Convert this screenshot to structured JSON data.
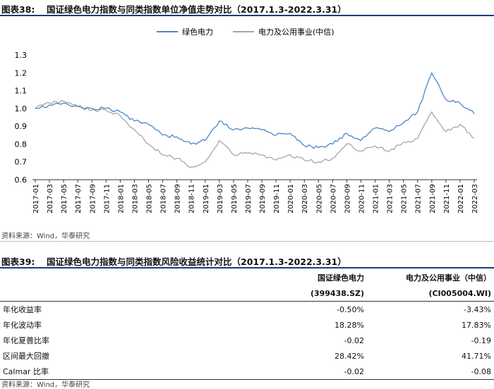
{
  "exhibit1": {
    "label": "图表38:",
    "title": "国证绿色电力指数与同类指数单位净值走势对比（2017.1.3-2022.3.31）",
    "source": "资料来源：Wind，华泰研究"
  },
  "exhibit2": {
    "label": "图表39:",
    "title": "国证绿色电力指数与同类指数风险收益统计对比（2017.1.3-2022.3.31）",
    "source": "资料来源：Wind，华泰研究",
    "col1_name": "国证绿色电力",
    "col1_code": "(399438.SZ)",
    "col2_name": "电力及公用事业（中信）",
    "col2_code": "(CI005004.WI)",
    "rows": [
      {
        "label": "年化收益率",
        "v1": "-0.50%",
        "v2": "-3.43%"
      },
      {
        "label": "年化波动率",
        "v1": "18.28%",
        "v2": "17.83%"
      },
      {
        "label": "年化夏普比率",
        "v1": "-0.02",
        "v2": "-0.19"
      },
      {
        "label": "区间最大回撤",
        "v1": "28.42%",
        "v2": "41.71%"
      },
      {
        "label": "Calmar 比率",
        "v1": "-0.02",
        "v2": "-0.08"
      }
    ]
  },
  "chart_data": {
    "type": "line",
    "title": "",
    "xlabel": "",
    "ylabel": "",
    "ylim": [
      0.6,
      1.3
    ],
    "yticks": [
      "1.3",
      "1.2",
      "1.1",
      "1.0",
      "0.9",
      "0.8",
      "0.7",
      "0.6"
    ],
    "legend_position": "top-center",
    "x": [
      "2017-01",
      "2017-03",
      "2017-05",
      "2017-07",
      "2017-09",
      "2017-11",
      "2018-01",
      "2018-03",
      "2018-05",
      "2018-07",
      "2018-09",
      "2018-11",
      "2019-01",
      "2019-03",
      "2019-05",
      "2019-07",
      "2019-09",
      "2019-11",
      "2020-01",
      "2020-03",
      "2020-05",
      "2020-07",
      "2020-09",
      "2020-11",
      "2021-01",
      "2021-03",
      "2021-05",
      "2021-07",
      "2021-09",
      "2021-11",
      "2022-01",
      "2022-03"
    ],
    "series": [
      {
        "name": "绿色电力",
        "color": "#4a86c8",
        "values": [
          1.0,
          1.02,
          1.03,
          1.01,
          1.0,
          1.0,
          0.98,
          0.93,
          0.91,
          0.85,
          0.84,
          0.8,
          0.82,
          0.93,
          0.88,
          0.89,
          0.88,
          0.85,
          0.86,
          0.79,
          0.78,
          0.8,
          0.86,
          0.82,
          0.89,
          0.87,
          0.92,
          0.98,
          1.2,
          1.05,
          1.03,
          0.97
        ]
      },
      {
        "name": "电力及公用事业(中信)",
        "color": "#a6a6a6",
        "values": [
          1.0,
          1.03,
          1.04,
          1.01,
          0.99,
          0.99,
          0.96,
          0.88,
          0.8,
          0.74,
          0.72,
          0.67,
          0.7,
          0.82,
          0.74,
          0.75,
          0.74,
          0.71,
          0.74,
          0.71,
          0.7,
          0.72,
          0.8,
          0.76,
          0.79,
          0.76,
          0.81,
          0.83,
          0.98,
          0.87,
          0.91,
          0.83
        ]
      }
    ]
  }
}
